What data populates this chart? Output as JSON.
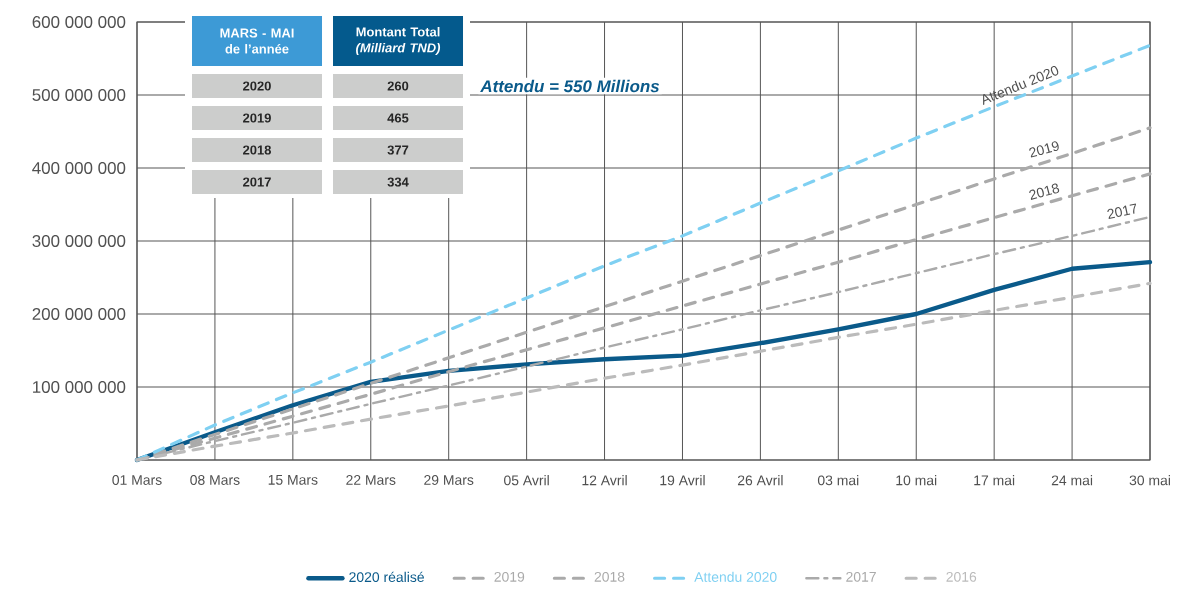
{
  "chart_data": {
    "type": "line",
    "categories": [
      "01 Mars",
      "08 Mars",
      "15 Mars",
      "22 Mars",
      "29 Mars",
      "05 Avril",
      "12 Avril",
      "19 Avril",
      "26 Avril",
      "03 mai",
      "10 mai",
      "17 mai",
      "24 mai",
      "30 mai"
    ],
    "ylim": [
      0,
      600000000
    ],
    "yticks": [
      {
        "value": 0,
        "label": null
      },
      {
        "value": 100000000,
        "label": "100 000 000"
      },
      {
        "value": 200000000,
        "label": "200 000 000"
      },
      {
        "value": 300000000,
        "label": "300 000 000"
      },
      {
        "value": 400000000,
        "label": "400 000 000"
      },
      {
        "value": 500000000,
        "label": "500 000 000"
      },
      {
        "value": 600000000,
        "label": "600 000 000"
      }
    ],
    "grid": true,
    "legend": "bottom",
    "series": [
      {
        "name": "2020 réalisé",
        "color": "#0a5a8a",
        "line_style": "solid",
        "values": [
          0,
          38000000,
          75000000,
          107000000,
          122000000,
          131000000,
          138000000,
          143000000,
          160000000,
          179000000,
          200000000,
          233000000,
          262000000,
          271000000
        ]
      },
      {
        "name": "2019",
        "color": "#aaaaaa",
        "line_style": "dashed",
        "values": [
          0,
          35000000,
          70000000,
          105000000,
          140000000,
          175000000,
          210000000,
          245000000,
          280000000,
          315000000,
          350000000,
          385000000,
          420000000,
          455000000
        ]
      },
      {
        "name": "2018",
        "color": "#aaaaaa",
        "line_style": "dashed",
        "values": [
          0,
          30000000,
          60000000,
          90000000,
          121000000,
          151000000,
          181000000,
          211000000,
          241000000,
          271000000,
          302000000,
          332000000,
          362000000,
          392000000
        ]
      },
      {
        "name": "Attendu 2020",
        "color": "#7fd0f2",
        "line_style": "dashed",
        "values": [
          0,
          48000000,
          92000000,
          134000000,
          178000000,
          222000000,
          266000000,
          307000000,
          352000000,
          396000000,
          441000000,
          484000000,
          526000000,
          568000000
        ]
      },
      {
        "name": "2017",
        "color": "#aaaaaa",
        "line_style": "dashdot",
        "values": [
          0,
          26000000,
          51000000,
          77000000,
          102000000,
          128000000,
          154000000,
          179000000,
          205000000,
          230000000,
          256000000,
          282000000,
          307000000,
          333000000
        ]
      },
      {
        "name": "2016",
        "color": "#bbbbbb",
        "line_style": "dashed",
        "values": [
          0,
          19000000,
          37000000,
          56000000,
          74000000,
          93000000,
          112000000,
          130000000,
          149000000,
          168000000,
          186000000,
          205000000,
          223000000,
          242000000
        ]
      }
    ],
    "annotations": [
      "MARS - MAI de l’année",
      "Montant Total *(Milliard TND)*",
      "2020",
      "260",
      "2019",
      "465",
      "2018",
      "377",
      "2017",
      "334",
      "Attendu = 550 Millions",
      {
        "text": "Attendu 2020",
        "x": "24 mai",
        "y": 526000000
      },
      {
        "text": "2019",
        "x": "24 mai",
        "y": 420000000
      },
      {
        "text": "2018",
        "x": "24 mai",
        "y": 362000000
      },
      {
        "text": "2017",
        "x": "30 mai",
        "y": 333000000
      }
    ]
  }
}
